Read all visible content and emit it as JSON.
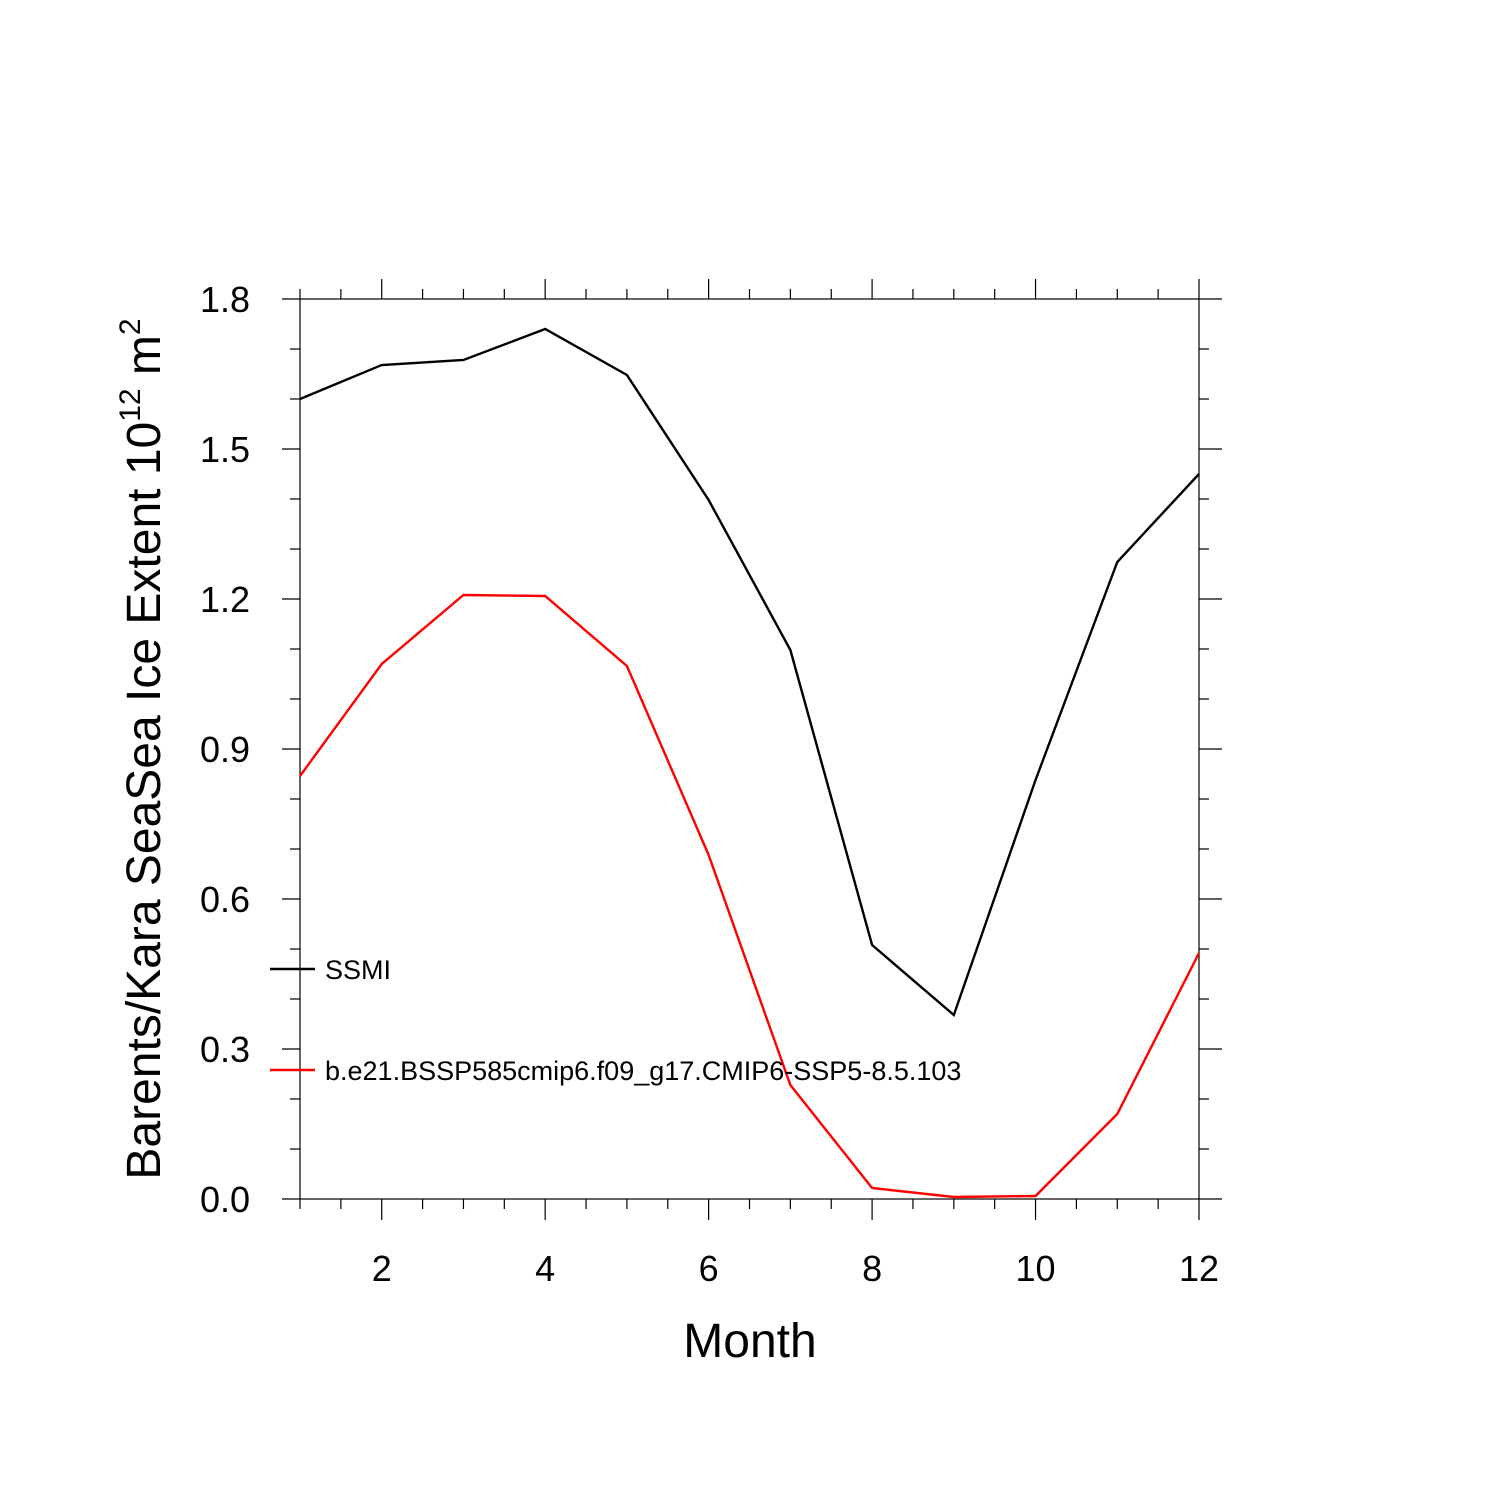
{
  "chart_data": {
    "type": "line",
    "xlabel": "Month",
    "ylabel": [
      "Barents/Kara SeaSea Ice Extent 10",
      "12",
      " m",
      "2"
    ],
    "x": [
      1,
      2,
      3,
      4,
      5,
      6,
      7,
      8,
      9,
      10,
      11,
      12
    ],
    "series": [
      {
        "name": "SSMI",
        "color": "#000000",
        "values": [
          1.6,
          1.668,
          1.678,
          1.74,
          1.648,
          1.398,
          1.098,
          0.508,
          0.368,
          0.838,
          1.274,
          1.45
        ]
      },
      {
        "name": "b.e21.BSSP585cmip6.f09_g17.CMIP6-SSP5-8.5.103",
        "color": "#ff0000",
        "values": [
          0.846,
          1.07,
          1.208,
          1.206,
          1.066,
          0.688,
          0.228,
          0.022,
          0.004,
          0.006,
          0.17,
          0.492
        ]
      }
    ],
    "xlim": [
      1,
      12
    ],
    "ylim": [
      0,
      1.8
    ],
    "xticks": [
      2,
      4,
      6,
      8,
      10,
      12
    ],
    "yticks": [
      {
        "value": 0,
        "label": "0.0"
      },
      0.3,
      0.6,
      0.9,
      1.2,
      1.5,
      1.8
    ],
    "xminorticks": [
      1,
      1.5,
      2.5,
      3,
      3.5,
      4.5,
      5,
      5.5,
      6.5,
      7,
      7.5,
      8.5,
      9,
      9.5,
      10.5,
      11,
      11.5
    ],
    "yminorticks": [
      0.1,
      0.2,
      0.4,
      0.5,
      0.7,
      0.8,
      1.0,
      1.1,
      1.3,
      1.4,
      1.6,
      1.7
    ],
    "legend": "lower left"
  }
}
